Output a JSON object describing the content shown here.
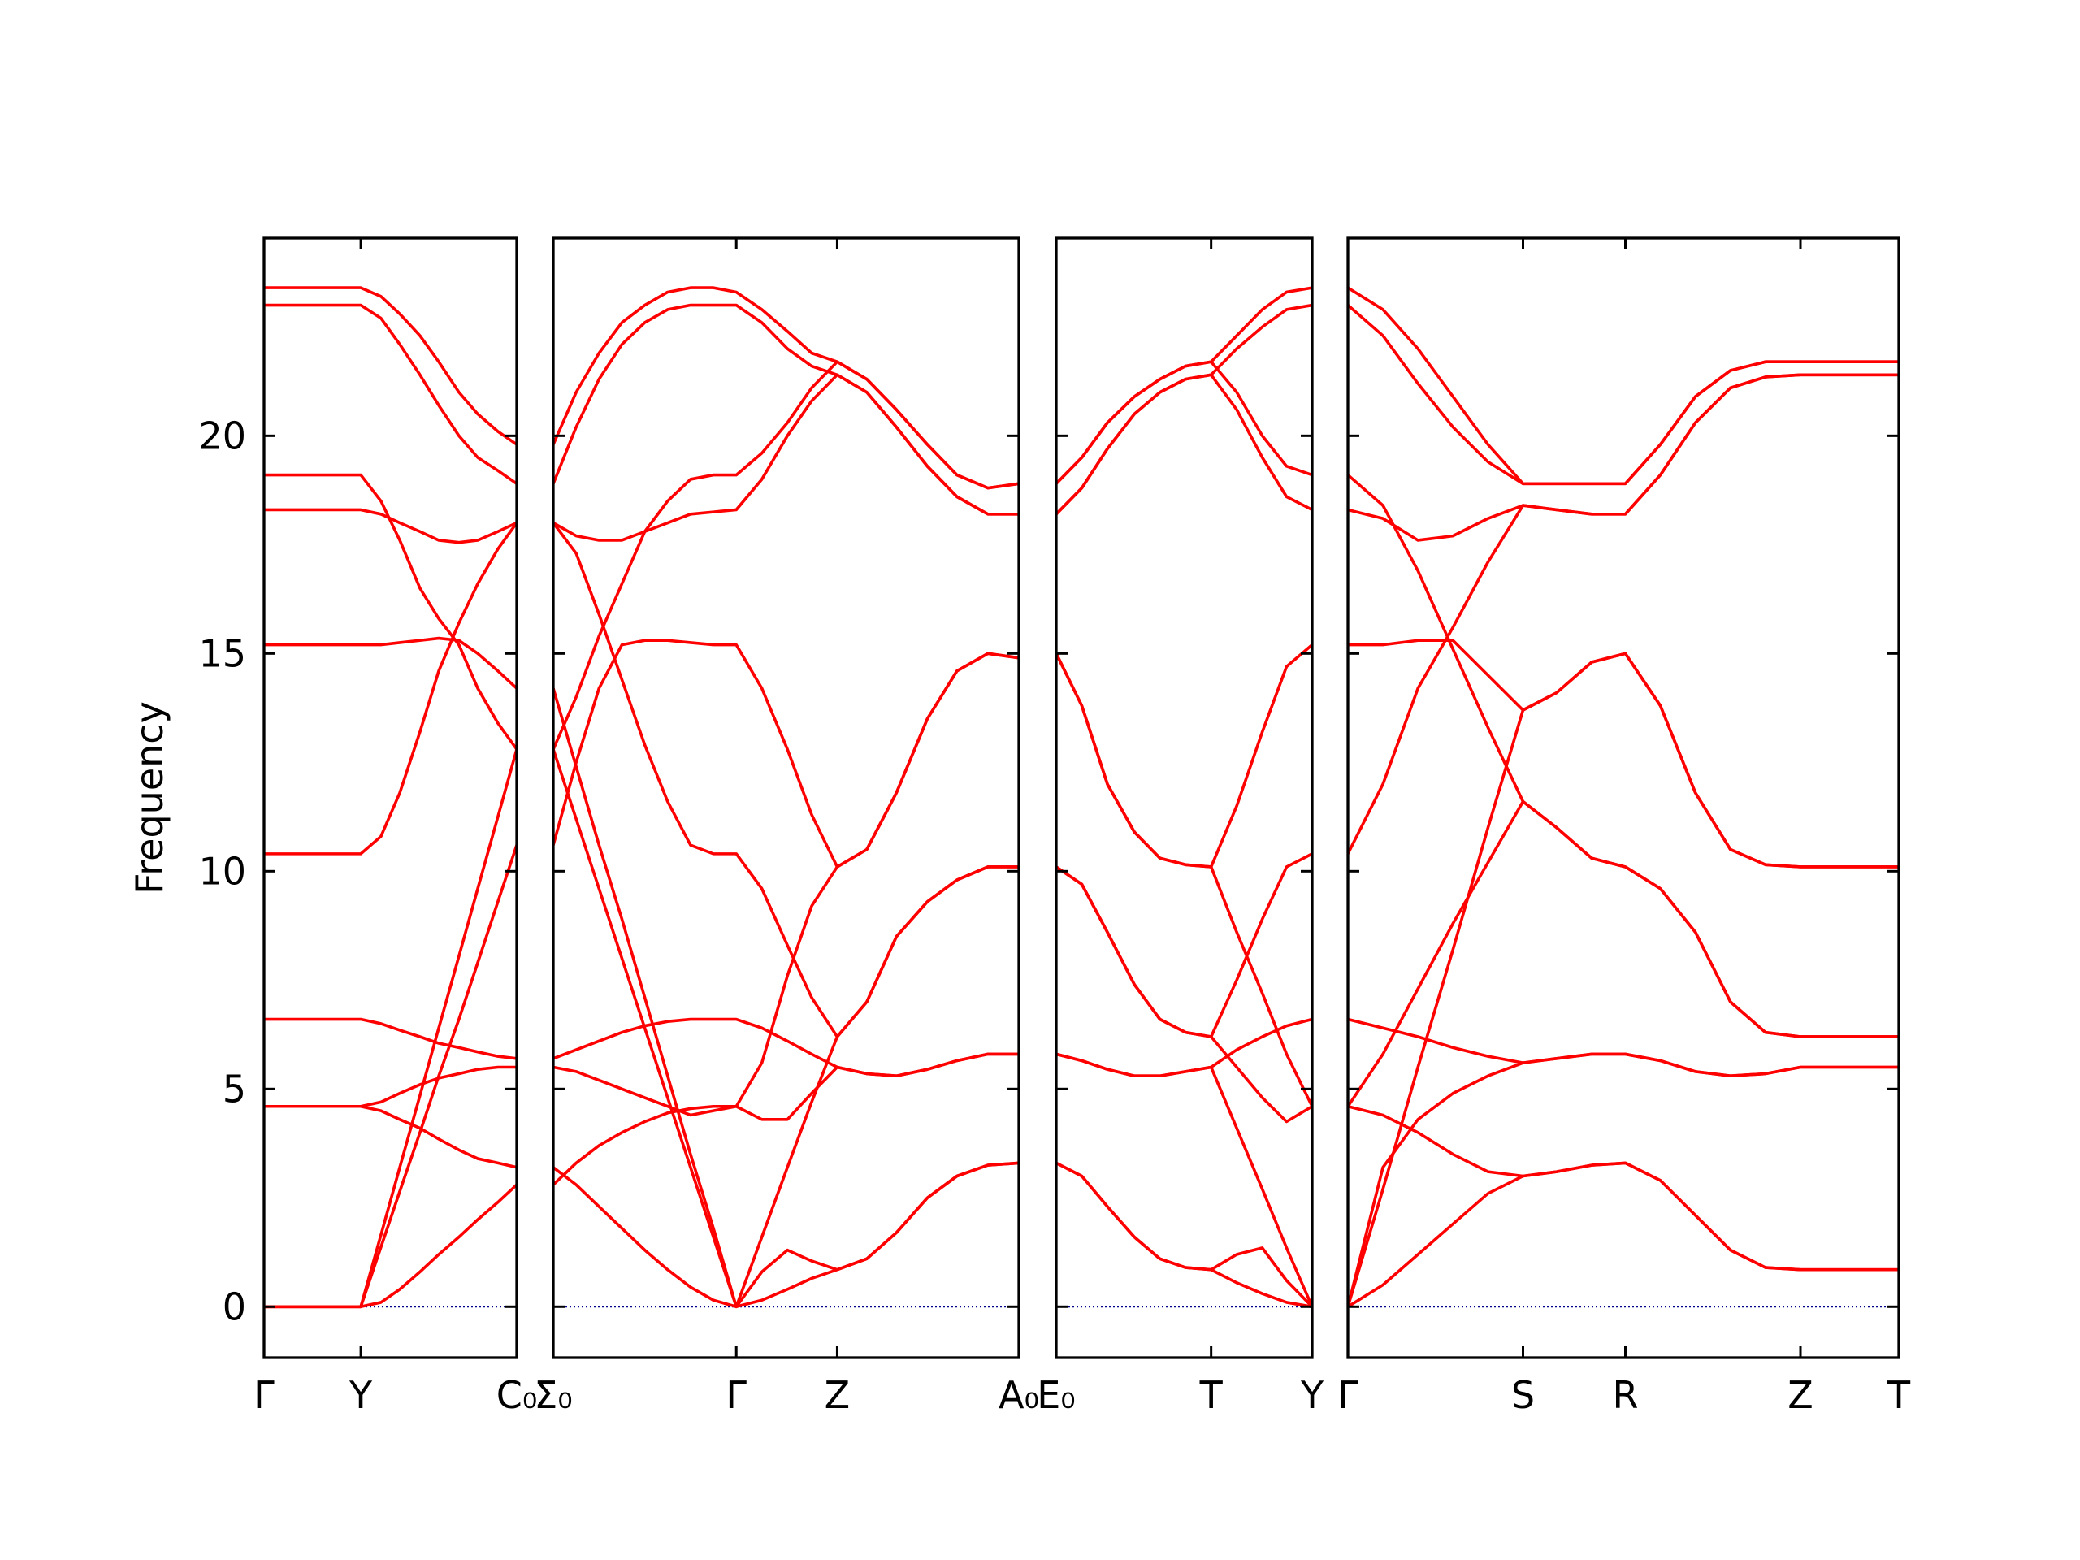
{
  "chart_data": [
    {
      "type": "line",
      "color": "#ff0000",
      "ylabel": "Frequency",
      "ytick_labels": true,
      "zero_line": true,
      "xlim": [
        0,
        1.88
      ],
      "ylim": [
        -1.17,
        24.54
      ],
      "yticks": [
        0,
        5,
        10,
        15,
        20
      ],
      "xticks": [
        {
          "value": 0,
          "label": "Γ"
        },
        {
          "value": 0.72,
          "label": "Y"
        },
        {
          "value": 1.88,
          "label": "C₀"
        }
      ],
      "x": [
        0,
        0.72,
        0.87,
        1.01,
        1.16,
        1.3,
        1.45,
        1.59,
        1.74,
        1.88
      ],
      "bands": [
        [
          0,
          0,
          0.1,
          0.4,
          0.8,
          1.2,
          1.6,
          2.0,
          2.4,
          2.8
        ],
        [
          0,
          0,
          1.65,
          3.2,
          4.85,
          6.4,
          8.05,
          9.6,
          11.25,
          12.8
        ],
        [
          0,
          0,
          1.37,
          2.65,
          4.0,
          5.3,
          6.6,
          7.9,
          9.3,
          10.6
        ],
        [
          4.6,
          4.6,
          4.7,
          4.9,
          5.1,
          5.25,
          5.35,
          5.45,
          5.5,
          5.5
        ],
        [
          4.6,
          4.6,
          4.5,
          4.3,
          4.1,
          3.85,
          3.6,
          3.4,
          3.3,
          3.2
        ],
        [
          6.6,
          6.6,
          6.5,
          6.35,
          6.2,
          6.05,
          5.95,
          5.85,
          5.75,
          5.7
        ],
        [
          10.4,
          10.4,
          10.8,
          11.8,
          13.2,
          14.6,
          15.7,
          16.6,
          17.4,
          18.0
        ],
        [
          15.2,
          15.2,
          15.2,
          15.25,
          15.3,
          15.35,
          15.3,
          15.0,
          14.6,
          14.2
        ],
        [
          18.3,
          18.3,
          18.2,
          18.0,
          17.8,
          17.6,
          17.55,
          17.6,
          17.8,
          18.0
        ],
        [
          19.1,
          19.1,
          18.5,
          17.6,
          16.5,
          15.8,
          15.2,
          14.2,
          13.4,
          12.8
        ],
        [
          23.0,
          23.0,
          22.7,
          22.1,
          21.4,
          20.7,
          20.0,
          19.5,
          19.2,
          18.9
        ],
        [
          23.4,
          23.4,
          23.2,
          22.8,
          22.3,
          21.7,
          21.0,
          20.5,
          20.1,
          19.8
        ]
      ]
    },
    {
      "type": "line",
      "color": "#ff0000",
      "ytick_labels": false,
      "zero_line": true,
      "xlim": [
        0,
        3.46
      ],
      "ylim": [
        -1.17,
        24.54
      ],
      "yticks": [
        0,
        5,
        10,
        15,
        20
      ],
      "xticks": [
        {
          "value": 0,
          "label": "Σ₀"
        },
        {
          "value": 1.36,
          "label": "Γ"
        },
        {
          "value": 2.11,
          "label": "Z"
        },
        {
          "value": 3.46,
          "label": "A₀"
        }
      ],
      "x": [
        0,
        0.17,
        0.34,
        0.51,
        0.68,
        0.85,
        1.02,
        1.19,
        1.36,
        1.55,
        1.74,
        1.92,
        2.11,
        2.33,
        2.55,
        2.78,
        3.0,
        3.23,
        3.46
      ],
      "bands": [
        [
          3.2,
          2.8,
          2.3,
          1.8,
          1.3,
          0.85,
          0.45,
          0.15,
          0,
          0.15,
          0.4,
          0.65,
          0.85,
          1.1,
          1.7,
          2.5,
          3.0,
          3.25,
          3.3
        ],
        [
          12.8,
          11.2,
          9.6,
          8.0,
          6.4,
          4.8,
          3.2,
          1.6,
          0,
          0.8,
          1.3,
          1.05,
          0.85,
          1.1,
          1.7,
          2.5,
          3.0,
          3.25,
          3.3
        ],
        [
          14.2,
          12.4,
          10.6,
          8.9,
          7.1,
          5.3,
          3.5,
          1.8,
          0,
          1.6,
          3.2,
          4.7,
          6.2,
          7.0,
          8.5,
          9.3,
          9.8,
          10.1,
          10.1
        ],
        [
          2.8,
          3.3,
          3.7,
          4.0,
          4.25,
          4.45,
          4.55,
          4.6,
          4.6,
          5.6,
          7.6,
          9.2,
          10.1,
          10.5,
          11.8,
          13.5,
          14.6,
          15.0,
          14.9
        ],
        [
          5.5,
          5.4,
          5.2,
          5.0,
          4.8,
          4.6,
          4.4,
          4.5,
          4.6,
          4.3,
          4.3,
          4.9,
          5.5,
          5.35,
          5.3,
          5.45,
          5.65,
          5.8,
          5.8
        ],
        [
          5.7,
          5.9,
          6.1,
          6.3,
          6.45,
          6.55,
          6.6,
          6.6,
          6.6,
          6.4,
          6.1,
          5.8,
          5.5,
          5.35,
          5.3,
          5.45,
          5.65,
          5.8,
          5.8
        ],
        [
          10.6,
          12.5,
          14.2,
          15.2,
          15.3,
          15.3,
          15.25,
          15.2,
          15.2,
          14.2,
          12.8,
          11.3,
          10.1,
          10.5,
          11.8,
          13.5,
          14.6,
          15.0,
          14.9
        ],
        [
          12.8,
          14.0,
          15.4,
          16.6,
          17.8,
          18.5,
          19.0,
          19.1,
          19.1,
          19.6,
          20.3,
          21.1,
          21.7,
          21.3,
          20.6,
          19.8,
          19.1,
          18.8,
          18.9
        ],
        [
          18.0,
          17.7,
          17.6,
          17.6,
          17.8,
          18.0,
          18.2,
          18.25,
          18.3,
          19.0,
          20.0,
          20.8,
          21.4,
          21.0,
          20.2,
          19.3,
          18.6,
          18.2,
          18.2
        ],
        [
          18.0,
          17.3,
          15.9,
          14.4,
          12.9,
          11.6,
          10.6,
          10.4,
          10.4,
          9.6,
          8.3,
          7.1,
          6.2,
          7.0,
          8.5,
          9.3,
          9.8,
          10.1,
          10.1
        ],
        [
          18.9,
          20.2,
          21.3,
          22.1,
          22.6,
          22.9,
          23.0,
          23.0,
          23.0,
          22.6,
          22.0,
          21.6,
          21.4,
          21.0,
          20.2,
          19.3,
          18.6,
          18.2,
          18.2
        ],
        [
          19.8,
          21.0,
          21.9,
          22.6,
          23.0,
          23.3,
          23.4,
          23.4,
          23.3,
          22.9,
          22.4,
          21.9,
          21.7,
          21.3,
          20.6,
          19.8,
          19.1,
          18.8,
          18.9
        ]
      ]
    },
    {
      "type": "line",
      "color": "#ff0000",
      "ytick_labels": false,
      "zero_line": true,
      "xlim": [
        0,
        1.9
      ],
      "ylim": [
        -1.17,
        24.54
      ],
      "yticks": [
        0,
        5,
        10,
        15,
        20
      ],
      "xticks": [
        {
          "value": 0,
          "label": "E₀"
        },
        {
          "value": 1.15,
          "label": "T"
        },
        {
          "value": 1.9,
          "label": "Y"
        }
      ],
      "x": [
        0,
        0.19,
        0.38,
        0.58,
        0.77,
        0.96,
        1.15,
        1.34,
        1.53,
        1.71,
        1.9
      ],
      "bands": [
        [
          3.3,
          3.0,
          2.3,
          1.6,
          1.1,
          0.9,
          0.85,
          1.2,
          1.35,
          0.6,
          0
        ],
        [
          3.3,
          3.0,
          2.3,
          1.6,
          1.1,
          0.9,
          0.85,
          0.55,
          0.3,
          0.1,
          0
        ],
        [
          5.8,
          5.65,
          5.45,
          5.3,
          5.3,
          5.4,
          5.5,
          4.1,
          2.7,
          1.35,
          0
        ],
        [
          5.8,
          5.65,
          5.45,
          5.3,
          5.3,
          5.4,
          5.5,
          5.9,
          6.2,
          6.45,
          6.6
        ],
        [
          10.1,
          9.7,
          8.6,
          7.4,
          6.6,
          6.3,
          6.2,
          5.5,
          4.8,
          4.25,
          4.6
        ],
        [
          10.1,
          9.7,
          8.6,
          7.4,
          6.6,
          6.3,
          6.2,
          7.5,
          8.9,
          10.1,
          10.4
        ],
        [
          15.0,
          13.8,
          12.0,
          10.9,
          10.3,
          10.15,
          10.1,
          8.6,
          7.2,
          5.8,
          4.6
        ],
        [
          15.0,
          13.8,
          12.0,
          10.9,
          10.3,
          10.15,
          10.1,
          11.5,
          13.2,
          14.7,
          15.2
        ],
        [
          18.2,
          18.8,
          19.7,
          20.5,
          21.0,
          21.3,
          21.4,
          20.6,
          19.5,
          18.6,
          18.3
        ],
        [
          18.2,
          18.8,
          19.7,
          20.5,
          21.0,
          21.3,
          21.4,
          22.0,
          22.5,
          22.9,
          23.0
        ],
        [
          18.9,
          19.5,
          20.3,
          20.9,
          21.3,
          21.6,
          21.7,
          21.0,
          20.0,
          19.3,
          19.1
        ],
        [
          18.9,
          19.5,
          20.3,
          20.9,
          21.3,
          21.6,
          21.7,
          22.3,
          22.9,
          23.3,
          23.4
        ]
      ]
    },
    {
      "type": "line",
      "color": "#ff0000",
      "ytick_labels": false,
      "zero_line": true,
      "xlim": [
        0,
        4.09
      ],
      "ylim": [
        -1.17,
        24.54
      ],
      "yticks": [
        0,
        5,
        10,
        15,
        20
      ],
      "xticks": [
        {
          "value": 0,
          "label": "Γ"
        },
        {
          "value": 1.3,
          "label": "S"
        },
        {
          "value": 2.06,
          "label": "R"
        },
        {
          "value": 3.36,
          "label": "Z"
        },
        {
          "value": 4.09,
          "label": "T"
        }
      ],
      "x": [
        0,
        0.26,
        0.52,
        0.78,
        1.04,
        1.3,
        1.55,
        1.81,
        2.06,
        2.32,
        2.58,
        2.84,
        3.1,
        3.36,
        3.6,
        3.85,
        4.09
      ],
      "bands": [
        [
          0,
          0.5,
          1.2,
          1.9,
          2.6,
          3.0,
          3.1,
          3.25,
          3.3,
          2.9,
          2.1,
          1.3,
          0.9,
          0.85,
          0.85,
          0.85,
          0.85
        ],
        [
          4.6,
          4.4,
          4.0,
          3.5,
          3.1,
          3.0,
          3.1,
          3.25,
          3.3,
          2.9,
          2.1,
          1.3,
          0.9,
          0.85,
          0.85,
          0.85,
          0.85
        ],
        [
          0,
          3.2,
          4.3,
          4.9,
          5.3,
          5.6,
          5.7,
          5.8,
          5.8,
          5.65,
          5.4,
          5.3,
          5.35,
          5.5,
          5.5,
          5.5,
          5.5
        ],
        [
          6.6,
          6.4,
          6.2,
          5.95,
          5.75,
          5.6,
          5.7,
          5.8,
          5.8,
          5.65,
          5.4,
          5.3,
          5.35,
          5.5,
          5.5,
          5.5,
          5.5
        ],
        [
          4.6,
          5.8,
          7.3,
          8.8,
          10.2,
          11.6,
          11.0,
          10.3,
          10.1,
          9.6,
          8.6,
          7.0,
          6.3,
          6.2,
          6.2,
          6.2,
          6.2
        ],
        [
          0,
          2.7,
          5.5,
          8.2,
          11.0,
          13.7,
          14.1,
          14.8,
          15.0,
          13.8,
          11.8,
          10.5,
          10.15,
          10.1,
          10.1,
          10.1,
          10.1
        ],
        [
          10.4,
          12.0,
          14.2,
          15.6,
          17.1,
          18.4,
          18.3,
          18.2,
          18.2,
          19.1,
          20.3,
          21.1,
          21.35,
          21.4,
          21.4,
          21.4,
          21.4
        ],
        [
          15.2,
          15.2,
          15.3,
          15.3,
          14.5,
          13.7,
          14.1,
          14.8,
          15.0,
          13.8,
          11.8,
          10.5,
          10.15,
          10.1,
          10.1,
          10.1,
          10.1
        ],
        [
          18.3,
          18.1,
          17.6,
          17.7,
          18.1,
          18.4,
          18.3,
          18.2,
          18.2,
          19.1,
          20.3,
          21.1,
          21.35,
          21.4,
          21.4,
          21.4,
          21.4
        ],
        [
          19.1,
          18.4,
          16.9,
          15.1,
          13.3,
          11.6,
          11.0,
          10.3,
          10.1,
          9.6,
          8.6,
          7.0,
          6.3,
          6.2,
          6.2,
          6.2,
          6.2
        ],
        [
          23.0,
          22.3,
          21.2,
          20.2,
          19.4,
          18.9,
          18.9,
          18.9,
          18.9,
          19.8,
          20.9,
          21.5,
          21.7,
          21.7,
          21.7,
          21.7,
          21.7
        ],
        [
          23.4,
          22.9,
          22.0,
          20.9,
          19.8,
          18.9,
          18.9,
          18.9,
          18.9,
          19.8,
          20.9,
          21.5,
          21.7,
          21.7,
          21.7,
          21.7,
          21.7
        ]
      ]
    }
  ]
}
